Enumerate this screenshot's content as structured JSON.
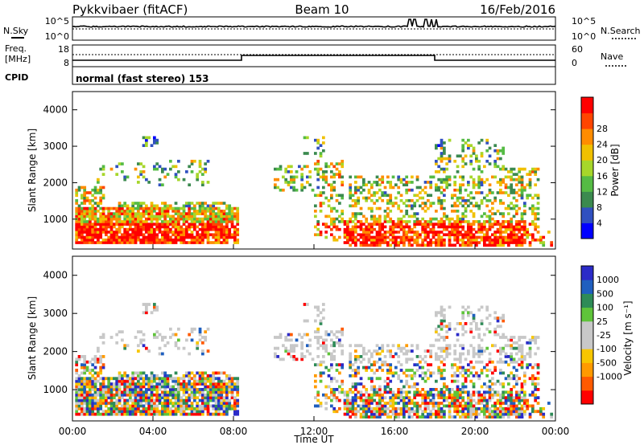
{
  "header": {
    "title": "Pykkvibaer (fitACF)",
    "beam": "Beam 10",
    "date": "16/Feb/2016"
  },
  "noise_panel": {
    "left_label": "N.Sky",
    "right_label": "N.Search",
    "left_ticks": [
      "10^5",
      "10^0"
    ],
    "right_ticks": [
      "10^5",
      "10^0"
    ]
  },
  "freq_panel": {
    "left_label_1": "Freq.",
    "left_label_2": "[MHz]",
    "left_ticks": [
      "18",
      "8"
    ],
    "right_ticks": [
      "60",
      "0"
    ],
    "right_label": "Nave"
  },
  "cpid_panel": {
    "label": "CPID",
    "text": "normal (fast stereo) 153"
  },
  "colors": {
    "power": [
      "#0000ff",
      "#3050c0",
      "#3b8a4f",
      "#55bb44",
      "#a6d62a",
      "#f0c000",
      "#ff8c00",
      "#ff4500",
      "#ff0000"
    ],
    "velocity": [
      "#ff0000",
      "#ff5a00",
      "#ff9a00",
      "#f7c600",
      "#c8c8c8",
      "#c8c8c8",
      "#5fc43a",
      "#2e8b57",
      "#1f5fbf",
      "#2b2bc8"
    ]
  },
  "chart_data": [
    {
      "type": "heatmap",
      "title": "",
      "ylabel": "Slant Range [km]",
      "xlabel": "",
      "ylim": [
        180,
        4500
      ],
      "y_ticks": [
        "1000",
        "2000",
        "3000",
        "4000"
      ],
      "x_ticks": [
        "00:00",
        "04:00",
        "08:00",
        "12:00",
        "16:00",
        "20:00",
        "00:00"
      ],
      "colorbar": {
        "label": "Power [dB]",
        "ticks": [
          "4",
          "8",
          "12",
          "16",
          "20",
          "24",
          "28"
        ],
        "range": [
          0,
          30
        ]
      }
    },
    {
      "type": "heatmap",
      "title": "",
      "ylabel": "Slant Range [km]",
      "xlabel": "Time UT",
      "ylim": [
        180,
        4500
      ],
      "y_ticks": [
        "1000",
        "2000",
        "3000",
        "4000"
      ],
      "x_ticks": [
        "00:00",
        "04:00",
        "08:00",
        "12:00",
        "16:00",
        "20:00",
        "00:00"
      ],
      "colorbar": {
        "label": "Velocity [m s⁻¹]",
        "ticks": [
          "1000",
          "500",
          "100",
          "25",
          "-25",
          "-100",
          "-500",
          "-1000"
        ],
        "range": [
          -1000,
          1000
        ]
      }
    }
  ]
}
